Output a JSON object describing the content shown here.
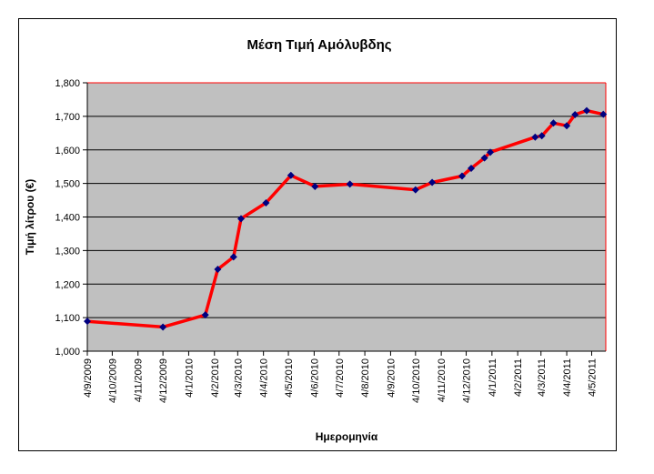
{
  "chart_data": {
    "type": "line",
    "title": "Μέση Τιμή Αμόλυβδης",
    "xlabel": "Ημερομηνία",
    "ylabel": "Τιμή λίτρου (€)",
    "ylim": [
      1.0,
      1.8
    ],
    "yticks": [
      1.0,
      1.1,
      1.2,
      1.3,
      1.4,
      1.5,
      1.6,
      1.7,
      1.8
    ],
    "ytick_labels": [
      "1,000",
      "1,100",
      "1,200",
      "1,300",
      "1,400",
      "1,500",
      "1,600",
      "1,700",
      "1,800"
    ],
    "xlim": [
      "2009-09-04",
      "2011-05-21"
    ],
    "xtick_labels": [
      "4/9/2009",
      "4/10/2009",
      "4/11/2009",
      "4/12/2009",
      "4/1/2010",
      "4/2/2010",
      "4/3/2010",
      "4/4/2010",
      "4/5/2010",
      "4/6/2010",
      "4/7/2010",
      "4/8/2010",
      "4/9/2010",
      "4/10/2010",
      "4/11/2010",
      "4/12/2010",
      "4/1/2011",
      "4/2/2011",
      "4/3/2011",
      "4/4/2011",
      "4/5/2011"
    ],
    "xtick_dates": [
      "2009-09-04",
      "2009-10-04",
      "2009-11-04",
      "2009-12-04",
      "2010-01-04",
      "2010-02-04",
      "2010-03-04",
      "2010-04-04",
      "2010-05-04",
      "2010-06-04",
      "2010-07-04",
      "2010-08-04",
      "2010-09-04",
      "2010-10-04",
      "2010-11-04",
      "2010-12-04",
      "2011-01-04",
      "2011-02-04",
      "2011-03-04",
      "2011-04-04",
      "2011-05-04"
    ],
    "grid": true,
    "legend": "none",
    "plot_background": "#c0c0c0",
    "series": [
      {
        "color": "#ff0000",
        "marker_color": "#000080",
        "points": [
          [
            "2009-09-04",
            1.089
          ],
          [
            "2009-12-04",
            1.072
          ],
          [
            "2010-01-24",
            1.108
          ],
          [
            "2010-02-08",
            1.244
          ],
          [
            "2010-02-27",
            1.281
          ],
          [
            "2010-03-08",
            1.395
          ],
          [
            "2010-04-07",
            1.442
          ],
          [
            "2010-05-07",
            1.524
          ],
          [
            "2010-06-05",
            1.491
          ],
          [
            "2010-07-17",
            1.498
          ],
          [
            "2010-10-04",
            1.481
          ],
          [
            "2010-10-24",
            1.503
          ],
          [
            "2010-11-29",
            1.522
          ],
          [
            "2010-12-10",
            1.545
          ],
          [
            "2010-12-26",
            1.576
          ],
          [
            "2011-01-02",
            1.593
          ],
          [
            "2011-02-25",
            1.638
          ],
          [
            "2011-03-05",
            1.642
          ],
          [
            "2011-03-19",
            1.68
          ],
          [
            "2011-04-04",
            1.672
          ],
          [
            "2011-04-14",
            1.705
          ],
          [
            "2011-04-28",
            1.717
          ],
          [
            "2011-05-18",
            1.706
          ]
        ]
      }
    ]
  }
}
